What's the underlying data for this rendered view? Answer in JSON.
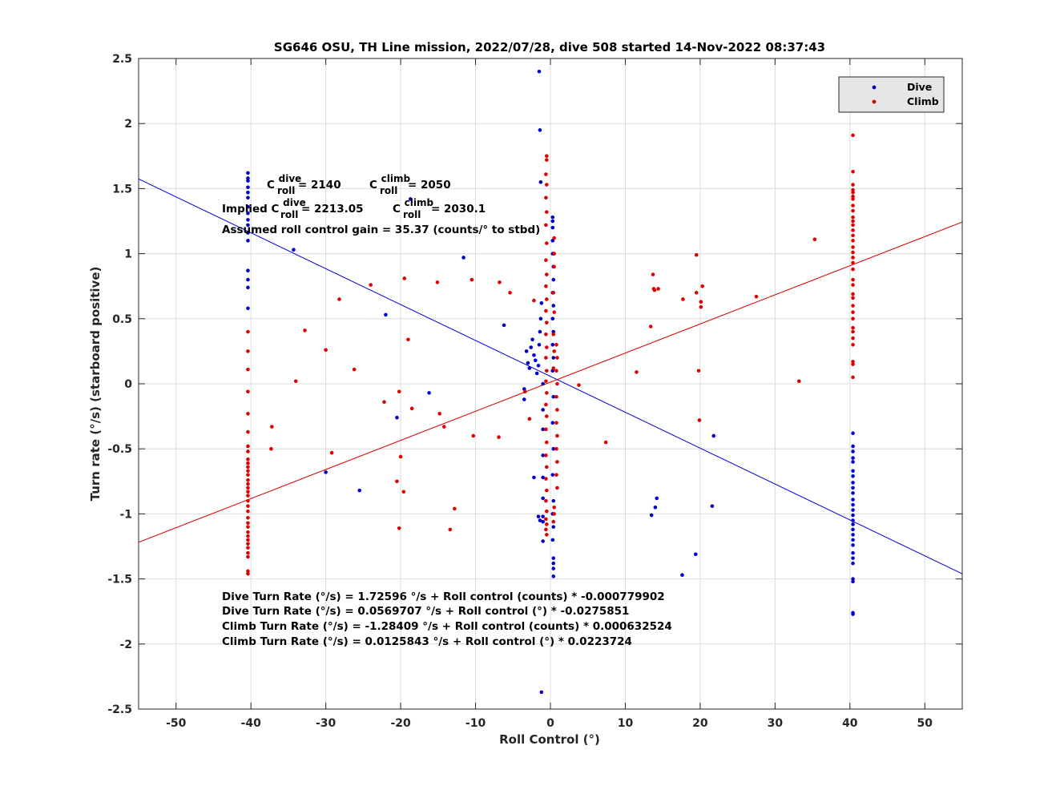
{
  "chart_data": {
    "type": "scatter",
    "title": "SG646 OSU, TH Line mission, 2022/07/28, dive 508 started 14-Nov-2022 08:37:43",
    "xlabel": "Roll Control (°)",
    "ylabel": "Turn rate (°/s) (starboard positive)",
    "xlim": [
      -55,
      55
    ],
    "ylim": [
      -2.5,
      2.5
    ],
    "xticks": [
      -50,
      -40,
      -30,
      -20,
      -10,
      0,
      10,
      20,
      30,
      40,
      50
    ],
    "yticks": [
      -2.5,
      -2,
      -1.5,
      -1,
      -0.5,
      0,
      0.5,
      1,
      1.5,
      2,
      2.5
    ],
    "grid": true,
    "legend_position": "top-right",
    "colors": {
      "dive": "#0000cc",
      "climb": "#e00000",
      "dive_line": "#0000dd",
      "climb_line": "#dd0000"
    },
    "series": [
      {
        "name": "Dive",
        "color": "#0000cc",
        "points": [
          [
            -40.4,
            1.62
          ],
          [
            -40.4,
            1.58
          ],
          [
            -40.4,
            1.56
          ],
          [
            -40.4,
            1.51
          ],
          [
            -40.4,
            1.47
          ],
          [
            -40.4,
            1.43
          ],
          [
            -40.4,
            1.36
          ],
          [
            -40.4,
            1.31
          ],
          [
            -40.4,
            1.26
          ],
          [
            -40.4,
            1.22
          ],
          [
            -40.4,
            1.16
          ],
          [
            -40.4,
            1.1
          ],
          [
            -40.4,
            0.87
          ],
          [
            -40.4,
            0.8
          ],
          [
            -40.4,
            0.74
          ],
          [
            -40.4,
            0.58
          ],
          [
            -34.3,
            1.03
          ],
          [
            -18.7,
            1.42
          ],
          [
            -11.6,
            0.97
          ],
          [
            -22.0,
            0.53
          ],
          [
            -6.2,
            0.45
          ],
          [
            -20.5,
            -0.26
          ],
          [
            -16.2,
            -0.07
          ],
          [
            -25.5,
            -0.82
          ],
          [
            -30.0,
            -0.68
          ],
          [
            -3.5,
            -0.04
          ],
          [
            -3.5,
            -0.12
          ],
          [
            -2.2,
            -0.72
          ],
          [
            -1.5,
            2.4
          ],
          [
            -1.4,
            1.95
          ],
          [
            -1.3,
            1.55
          ],
          [
            -3.2,
            0.25
          ],
          [
            -3.0,
            0.16
          ],
          [
            -2.8,
            0.12
          ],
          [
            -2.6,
            0.28
          ],
          [
            -2.4,
            0.34
          ],
          [
            -2.2,
            0.22
          ],
          [
            -2.0,
            0.18
          ],
          [
            -1.8,
            0.08
          ],
          [
            -1.6,
            0.14
          ],
          [
            -1.5,
            0.3
          ],
          [
            -1.4,
            0.4
          ],
          [
            -1.3,
            0.5
          ],
          [
            -1.2,
            0.62
          ],
          [
            -1.0,
            0.0
          ],
          [
            -1.0,
            -0.2
          ],
          [
            -1.0,
            -0.35
          ],
          [
            -1.0,
            -0.55
          ],
          [
            -1.0,
            -0.72
          ],
          [
            -1.0,
            -0.88
          ],
          [
            -1.0,
            -1.02
          ],
          [
            -1.0,
            -1.06
          ],
          [
            -1.0,
            -1.21
          ],
          [
            -1.4,
            -1.05
          ],
          [
            -1.6,
            -1.02
          ],
          [
            -1.2,
            -2.37
          ],
          [
            0.3,
            1.28
          ],
          [
            0.3,
            1.25
          ],
          [
            0.3,
            1.2
          ],
          [
            0.3,
            1.1
          ],
          [
            0.3,
            1.0
          ],
          [
            0.4,
            0.9
          ],
          [
            0.4,
            0.8
          ],
          [
            0.3,
            0.7
          ],
          [
            0.4,
            0.6
          ],
          [
            0.3,
            0.5
          ],
          [
            0.4,
            0.4
          ],
          [
            0.3,
            0.3
          ],
          [
            0.4,
            0.2
          ],
          [
            0.3,
            0.1
          ],
          [
            0.4,
            -0.1
          ],
          [
            0.3,
            -0.3
          ],
          [
            0.4,
            -0.5
          ],
          [
            0.3,
            -0.7
          ],
          [
            0.4,
            -0.9
          ],
          [
            0.3,
            -1.0
          ],
          [
            0.4,
            -1.1
          ],
          [
            0.3,
            -1.2
          ],
          [
            0.4,
            -1.34
          ],
          [
            0.4,
            -1.38
          ],
          [
            0.4,
            -1.42
          ],
          [
            0.4,
            -1.48
          ],
          [
            21.8,
            -0.4
          ],
          [
            21.6,
            -0.94
          ],
          [
            14.2,
            -0.88
          ],
          [
            14.0,
            -0.95
          ],
          [
            13.5,
            -1.01
          ],
          [
            19.4,
            -1.31
          ],
          [
            17.6,
            -1.47
          ],
          [
            40.4,
            -0.38
          ],
          [
            40.4,
            -0.48
          ],
          [
            40.4,
            -0.52
          ],
          [
            40.4,
            -0.57
          ],
          [
            40.4,
            -0.6
          ],
          [
            40.4,
            -0.67
          ],
          [
            40.4,
            -0.71
          ],
          [
            40.4,
            -0.76
          ],
          [
            40.4,
            -0.8
          ],
          [
            40.4,
            -0.84
          ],
          [
            40.4,
            -0.89
          ],
          [
            40.4,
            -0.93
          ],
          [
            40.4,
            -0.97
          ],
          [
            40.4,
            -1.01
          ],
          [
            40.4,
            -1.05
          ],
          [
            40.4,
            -1.08
          ],
          [
            40.4,
            -1.12
          ],
          [
            40.4,
            -1.16
          ],
          [
            40.4,
            -1.2
          ],
          [
            40.4,
            -1.24
          ],
          [
            40.4,
            -1.3
          ],
          [
            40.4,
            -1.34
          ],
          [
            40.4,
            -1.38
          ],
          [
            40.4,
            -1.5
          ],
          [
            40.4,
            -1.52
          ],
          [
            40.4,
            -1.76
          ],
          [
            40.4,
            -1.77
          ]
        ]
      },
      {
        "name": "Climb",
        "color": "#e00000",
        "points": [
          [
            -40.4,
            0.4
          ],
          [
            -40.4,
            0.25
          ],
          [
            -40.4,
            0.11
          ],
          [
            -40.4,
            -0.06
          ],
          [
            -40.4,
            -0.23
          ],
          [
            -40.4,
            -0.37
          ],
          [
            -40.4,
            -0.48
          ],
          [
            -40.4,
            -0.52
          ],
          [
            -40.4,
            -0.58
          ],
          [
            -40.4,
            -0.61
          ],
          [
            -40.4,
            -0.64
          ],
          [
            -40.4,
            -0.67
          ],
          [
            -40.4,
            -0.7
          ],
          [
            -40.4,
            -0.74
          ],
          [
            -40.4,
            -0.77
          ],
          [
            -40.4,
            -0.8
          ],
          [
            -40.4,
            -0.83
          ],
          [
            -40.4,
            -0.86
          ],
          [
            -40.4,
            -0.9
          ],
          [
            -40.4,
            -0.94
          ],
          [
            -40.4,
            -0.98
          ],
          [
            -40.4,
            -1.03
          ],
          [
            -40.4,
            -1.07
          ],
          [
            -40.4,
            -1.1
          ],
          [
            -40.4,
            -1.14
          ],
          [
            -40.4,
            -1.17
          ],
          [
            -40.4,
            -1.2
          ],
          [
            -40.4,
            -1.23
          ],
          [
            -40.4,
            -1.26
          ],
          [
            -40.4,
            -1.3
          ],
          [
            -40.4,
            -1.33
          ],
          [
            -40.4,
            -1.44
          ],
          [
            -40.4,
            -1.46
          ],
          [
            -37.2,
            -0.33
          ],
          [
            -37.3,
            -0.5
          ],
          [
            -34.0,
            0.02
          ],
          [
            -32.8,
            0.41
          ],
          [
            -30.0,
            0.26
          ],
          [
            -29.2,
            -0.53
          ],
          [
            -28.2,
            0.65
          ],
          [
            -26.2,
            0.11
          ],
          [
            -24.0,
            0.76
          ],
          [
            -22.2,
            -0.14
          ],
          [
            -20.2,
            -0.06
          ],
          [
            -19.5,
            0.81
          ],
          [
            -19.0,
            0.34
          ],
          [
            -18.5,
            -0.19
          ],
          [
            -20.5,
            -0.75
          ],
          [
            -19.6,
            -0.83
          ],
          [
            -20.0,
            -0.56
          ],
          [
            -20.2,
            -1.11
          ],
          [
            -15.1,
            0.78
          ],
          [
            -14.8,
            -0.23
          ],
          [
            -14.2,
            -0.33
          ],
          [
            -13.4,
            -1.12
          ],
          [
            -12.8,
            -0.96
          ],
          [
            -10.5,
            0.8
          ],
          [
            -10.3,
            -0.4
          ],
          [
            -6.8,
            0.78
          ],
          [
            -6.9,
            -0.41
          ],
          [
            -5.4,
            0.7
          ],
          [
            -3.4,
            -0.06
          ],
          [
            -2.8,
            -0.27
          ],
          [
            -2.2,
            0.64
          ],
          [
            -0.5,
            1.75
          ],
          [
            -0.5,
            1.72
          ],
          [
            -0.6,
            1.61
          ],
          [
            -0.5,
            1.53
          ],
          [
            -0.6,
            1.43
          ],
          [
            -0.5,
            1.32
          ],
          [
            -0.6,
            1.22
          ],
          [
            -0.5,
            1.08
          ],
          [
            -0.6,
            0.95
          ],
          [
            -0.5,
            0.84
          ],
          [
            -0.6,
            0.75
          ],
          [
            -0.5,
            0.65
          ],
          [
            -0.6,
            0.56
          ],
          [
            -0.5,
            0.47
          ],
          [
            -0.6,
            0.38
          ],
          [
            -0.5,
            0.28
          ],
          [
            -0.6,
            0.2
          ],
          [
            -0.5,
            0.1
          ],
          [
            -0.6,
            0.02
          ],
          [
            -0.5,
            -0.07
          ],
          [
            -0.6,
            -0.16
          ],
          [
            -0.5,
            -0.25
          ],
          [
            -0.6,
            -0.35
          ],
          [
            -0.5,
            -0.45
          ],
          [
            -0.6,
            -0.55
          ],
          [
            -0.5,
            -0.64
          ],
          [
            -0.6,
            -0.73
          ],
          [
            -0.5,
            -0.82
          ],
          [
            -0.6,
            -0.9
          ],
          [
            -0.5,
            -0.98
          ],
          [
            -0.6,
            -1.04
          ],
          [
            -0.5,
            -1.08
          ],
          [
            -0.6,
            -1.12
          ],
          [
            -0.5,
            -1.16
          ],
          [
            0.5,
            1.12
          ],
          [
            0.5,
            1.0
          ],
          [
            0.5,
            0.9
          ],
          [
            0.4,
            0.7
          ],
          [
            0.5,
            0.55
          ],
          [
            0.4,
            0.38
          ],
          [
            0.5,
            0.25
          ],
          [
            0.4,
            0.12
          ],
          [
            0.8,
            0.3
          ],
          [
            0.9,
            0.2
          ],
          [
            0.8,
            0.1
          ],
          [
            0.9,
            0.0
          ],
          [
            0.8,
            -0.1
          ],
          [
            0.9,
            -0.2
          ],
          [
            0.8,
            -0.3
          ],
          [
            0.9,
            -0.4
          ],
          [
            0.8,
            -0.5
          ],
          [
            0.9,
            -0.6
          ],
          [
            0.8,
            -0.7
          ],
          [
            0.9,
            -0.8
          ],
          [
            0.5,
            -0.95
          ],
          [
            0.5,
            -1.0
          ],
          [
            0.4,
            -1.06
          ],
          [
            3.8,
            -0.01
          ],
          [
            7.4,
            -0.45
          ],
          [
            11.5,
            0.09
          ],
          [
            13.4,
            0.44
          ],
          [
            13.7,
            0.84
          ],
          [
            13.8,
            0.73
          ],
          [
            13.9,
            0.72
          ],
          [
            14.4,
            0.73
          ],
          [
            17.7,
            0.65
          ],
          [
            19.5,
            0.99
          ],
          [
            19.5,
            0.7
          ],
          [
            19.8,
            0.1
          ],
          [
            19.9,
            -0.28
          ],
          [
            20.1,
            0.63
          ],
          [
            20.1,
            0.59
          ],
          [
            20.3,
            0.75
          ],
          [
            27.5,
            0.67
          ],
          [
            33.2,
            0.02
          ],
          [
            35.3,
            1.11
          ],
          [
            40.4,
            1.91
          ],
          [
            40.4,
            1.63
          ],
          [
            40.4,
            1.53
          ],
          [
            40.4,
            1.49
          ],
          [
            40.4,
            1.47
          ],
          [
            40.4,
            1.44
          ],
          [
            40.4,
            1.42
          ],
          [
            40.4,
            1.37
          ],
          [
            40.4,
            1.33
          ],
          [
            40.4,
            1.28
          ],
          [
            40.4,
            1.25
          ],
          [
            40.4,
            1.22
          ],
          [
            40.4,
            1.18
          ],
          [
            40.4,
            1.14
          ],
          [
            40.4,
            1.1
          ],
          [
            40.4,
            1.05
          ],
          [
            40.4,
            1.01
          ],
          [
            40.4,
            0.97
          ],
          [
            40.4,
            0.93
          ],
          [
            40.4,
            0.88
          ],
          [
            40.4,
            0.8
          ],
          [
            40.4,
            0.76
          ],
          [
            40.4,
            0.69
          ],
          [
            40.4,
            0.66
          ],
          [
            40.4,
            0.6
          ],
          [
            40.4,
            0.55
          ],
          [
            40.4,
            0.5
          ],
          [
            40.4,
            0.43
          ],
          [
            40.4,
            0.4
          ],
          [
            40.4,
            0.35
          ],
          [
            40.4,
            0.3
          ],
          [
            40.4,
            0.17
          ],
          [
            40.4,
            0.15
          ],
          [
            40.4,
            0.05
          ]
        ]
      }
    ],
    "fit_lines": [
      {
        "name": "dive_fit",
        "color": "#0000dd",
        "intercept": 0.0569707,
        "slope": -0.0275851
      },
      {
        "name": "climb_fit",
        "color": "#dd0000",
        "intercept": 0.0125843,
        "slope": 0.0223724
      }
    ],
    "annotations": {
      "c_roll": {
        "dive_prefix": "C",
        "dive_sup": "dive",
        "dive_sub": "roll",
        "dive_value": " = 2140",
        "climb_prefix": "C",
        "climb_sup": "climb",
        "climb_sub": "roll",
        "climb_value": " = 2050"
      },
      "implied": {
        "label": "Implied C",
        "dive_sup": "dive",
        "dive_sub": "roll",
        "dive_value": " = 2213.05",
        "climb_prefix": "C",
        "climb_sup": "climb",
        "climb_sub": "roll",
        "climb_value": " = 2030.1"
      },
      "gain": "Assumed roll control gain = 35.37 (counts/° to stbd)",
      "equations": [
        "Dive Turn Rate (°/s) = 1.72596 °/s + Roll control (counts) * -0.000779902",
        "Dive Turn Rate (°/s) = 0.0569707 °/s + Roll control (°) * -0.0275851",
        "Climb Turn Rate (°/s) = -1.28409 °/s + Roll control (counts) * 0.000632524",
        "Climb Turn Rate (°/s) = 0.0125843 °/s + Roll control (°) * 0.0223724"
      ]
    }
  }
}
